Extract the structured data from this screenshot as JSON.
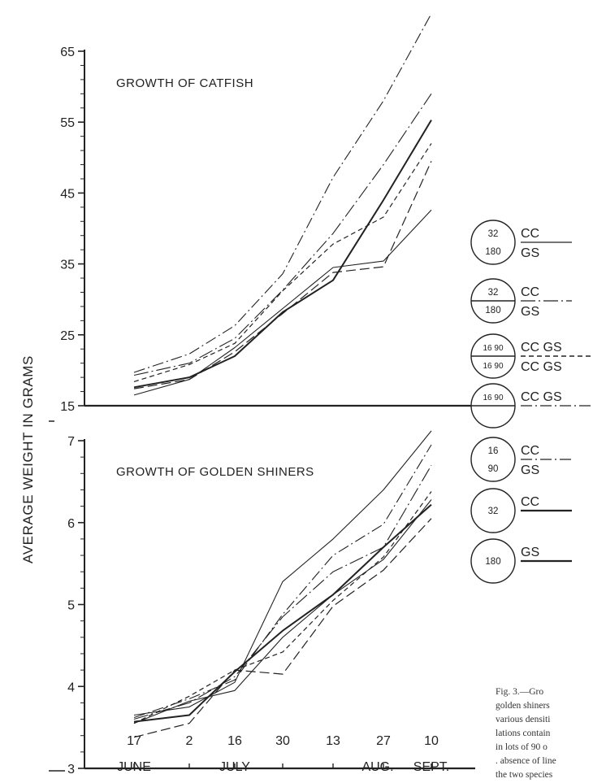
{
  "chart_data": [
    {
      "type": "line",
      "title": "GROWTH OF CATFISH",
      "ylabel": "AVERAGE WEIGHT IN GRAMS",
      "ylim": [
        15,
        65
      ],
      "yticks": [
        "15",
        "25",
        "35",
        "45",
        "55",
        "65"
      ],
      "x": [
        "17",
        "2",
        "16",
        "30",
        "13",
        "27",
        "10"
      ],
      "series": [
        {
          "style": "dash-dot",
          "values": [
            19.7,
            22.3,
            26.3,
            33.6,
            47.2,
            58.0,
            70.3
          ]
        },
        {
          "style": "long-dash-dot",
          "values": [
            19.3,
            21.0,
            24.5,
            31.3,
            39.3,
            49.0,
            59.0
          ]
        },
        {
          "style": "short-dash",
          "values": [
            18.4,
            20.8,
            23.8,
            31.2,
            37.8,
            41.6,
            52.0
          ]
        },
        {
          "style": "solid-thick",
          "values": [
            17.6,
            19.0,
            22.0,
            28.2,
            32.7,
            44.0,
            55.3
          ]
        },
        {
          "style": "long-dash",
          "values": [
            17.4,
            18.7,
            22.6,
            28.0,
            33.8,
            34.6,
            49.5
          ]
        },
        {
          "style": "solid-thin",
          "values": [
            16.5,
            18.7,
            23.2,
            28.7,
            34.5,
            35.4,
            42.6
          ]
        }
      ]
    },
    {
      "type": "line",
      "title": "GROWTH OF GOLDEN SHINERS",
      "ylim": [
        3,
        7
      ],
      "yticks": [
        "3",
        "4",
        "5",
        "6",
        "7"
      ],
      "x": [
        "17",
        "2",
        "16",
        "30",
        "13",
        "27",
        "10"
      ],
      "series": [
        {
          "style": "solid-thin",
          "values": [
            3.65,
            3.75,
            4.05,
            5.28,
            5.8,
            6.4,
            7.12
          ]
        },
        {
          "style": "dash-dot",
          "values": [
            3.62,
            3.85,
            4.08,
            4.88,
            5.6,
            5.98,
            6.95
          ]
        },
        {
          "style": "long-dash-dot",
          "values": [
            3.6,
            3.8,
            4.12,
            4.85,
            5.4,
            5.7,
            6.7
          ]
        },
        {
          "style": "short-dash",
          "values": [
            3.55,
            3.88,
            4.2,
            4.42,
            5.05,
            5.58,
            6.38
          ]
        },
        {
          "style": "solid-thick",
          "values": [
            3.57,
            3.65,
            4.18,
            4.68,
            5.12,
            5.7,
            6.22
          ]
        },
        {
          "style": "long-dash",
          "values": [
            3.38,
            3.55,
            4.2,
            4.15,
            4.98,
            5.42,
            6.05
          ]
        },
        {
          "style": "solid-thin",
          "values": [
            3.55,
            3.82,
            3.95,
            4.6,
            5.12,
            5.55,
            6.28
          ]
        }
      ]
    }
  ],
  "x_tick_labels": [
    "17",
    "2",
    "16",
    "30",
    "13",
    "27",
    "10"
  ],
  "month_labels": [
    "JUNE",
    "JULY",
    "AUG.",
    "SEPT."
  ],
  "legend": [
    {
      "circle_top": "32",
      "circle_bottom": "180",
      "divider": false,
      "text_top": "CC",
      "text_bottom": "GS",
      "line_style": "solid-thin"
    },
    {
      "circle_top": "32",
      "circle_bottom": "180",
      "divider": true,
      "text_top": "CC",
      "text_bottom": "GS",
      "line_style": "long-dash-dot"
    },
    {
      "circle_top": "16 90",
      "circle_bottom": "16 90",
      "divider": true,
      "text_top": "CC GS",
      "text_bottom": "CC GS",
      "line_style": "short-dash"
    },
    {
      "circle_top": "16 90",
      "circle_bottom": "",
      "divider": true,
      "text_top": "CC GS",
      "text_bottom": "",
      "line_style": "dash-dot"
    },
    {
      "circle_top": "16",
      "circle_bottom": "90",
      "divider": false,
      "text_top": "CC",
      "text_bottom": "GS",
      "line_style": "dash-dot"
    },
    {
      "circle_top": "32",
      "circle_bottom": "",
      "divider": false,
      "text_top": "CC",
      "text_bottom": "",
      "line_style": "solid-thick"
    },
    {
      "circle_top": "180",
      "circle_bottom": "",
      "divider": false,
      "text_top": "GS",
      "text_bottom": "",
      "line_style": "solid-thick"
    }
  ],
  "caption": {
    "lines": [
      "Fig. 3.—Gro",
      "golden shiners",
      "various densiti",
      "lations contain",
      "in lots of 90 o",
      ". absence of line",
      "the two species"
    ]
  }
}
